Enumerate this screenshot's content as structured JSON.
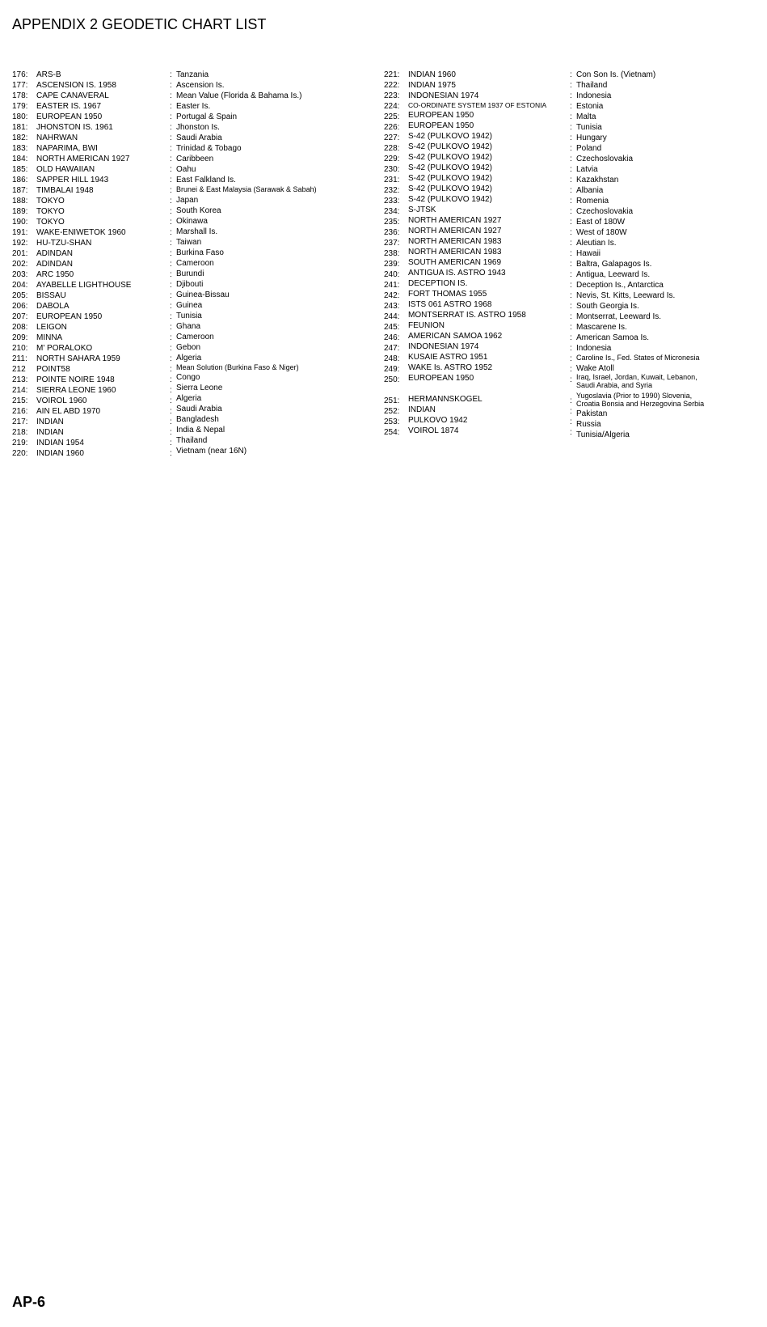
{
  "title": "APPENDIX 2 GEODETIC CHART LIST",
  "footer": "AP-6",
  "leftColumn": [
    {
      "code": "176:",
      "name": "ARS-B",
      "region": "Tanzania"
    },
    {
      "code": "177:",
      "name": "ASCENSION IS. 1958",
      "region": "Ascension Is."
    },
    {
      "code": "178:",
      "name": "CAPE CANAVERAL",
      "region": "Mean Value (Florida & Bahama Is.)"
    },
    {
      "code": "179:",
      "name": "EASTER IS. 1967",
      "region": "Easter Is."
    },
    {
      "code": "180:",
      "name": "EUROPEAN 1950",
      "region": "Portugal & Spain"
    },
    {
      "code": "181:",
      "name": "JHONSTON IS. 1961",
      "region": "Jhonston Is."
    },
    {
      "code": "182:",
      "name": "NAHRWAN",
      "region": "Saudi Arabia"
    },
    {
      "code": "183:",
      "name": "NAPARIMA, BWI",
      "region": "Trinidad & Tobago"
    },
    {
      "code": "184:",
      "name": "NORTH AMERICAN 1927",
      "region": "Caribbeen"
    },
    {
      "code": "185:",
      "name": "OLD HAWAIIAN",
      "region": "Oahu"
    },
    {
      "code": "186:",
      "name": "SAPPER HILL 1943",
      "region": "East Falkland Is."
    },
    {
      "code": "187:",
      "name": "TIMBALAI 1948",
      "region": "Brunei & East Malaysia (Sarawak & Sabah)",
      "regionClass": "small"
    },
    {
      "code": "188:",
      "name": "TOKYO",
      "region": "Japan"
    },
    {
      "code": "189:",
      "name": "TOKYO",
      "region": "South Korea"
    },
    {
      "code": "190:",
      "name": "TOKYO",
      "region": "Okinawa"
    },
    {
      "code": "191:",
      "name": "WAKE-ENIWETOK 1960",
      "region": "Marshall Is."
    },
    {
      "code": "192:",
      "name": "HU-TZU-SHAN",
      "region": "Taiwan"
    },
    {
      "code": "201:",
      "name": "ADINDAN",
      "region": "Burkina Faso"
    },
    {
      "code": "202:",
      "name": "ADINDAN",
      "region": "Cameroon"
    },
    {
      "code": "203:",
      "name": "ARC 1950",
      "region": "Burundi"
    },
    {
      "code": "204:",
      "name": "AYABELLE LIGHTHOUSE",
      "region": "Djibouti"
    },
    {
      "code": "205:",
      "name": "BISSAU",
      "region": "Guinea-Bissau"
    },
    {
      "code": "206:",
      "name": "DABOLA",
      "region": "Guinea"
    },
    {
      "code": "207:",
      "name": "EUROPEAN 1950",
      "region": "Tunisia"
    },
    {
      "code": "208:",
      "name": "LEIGON",
      "region": "Ghana"
    },
    {
      "code": "209:",
      "name": "MINNA",
      "region": "Cameroon"
    },
    {
      "code": "210:",
      "name": "M' PORALOKO",
      "region": "Gebon"
    },
    {
      "code": "211:",
      "name": "NORTH SAHARA 1959",
      "region": "Algeria"
    },
    {
      "code": "212",
      "name": "POINT58",
      "region": "Mean Solution (Burkina Faso & Niger)",
      "regionClass": "small"
    },
    {
      "code": "213:",
      "name": "POINTE NOIRE 1948",
      "region": "Congo"
    },
    {
      "code": "214:",
      "name": "SIERRA LEONE 1960",
      "region": "Sierra Leone"
    },
    {
      "code": "215:",
      "name": "VOIROL 1960",
      "region": "Algeria"
    },
    {
      "code": "216:",
      "name": "AIN EL ABD 1970",
      "region": "Saudi Arabia"
    },
    {
      "code": "217:",
      "name": "INDIAN",
      "region": "Bangladesh"
    },
    {
      "code": "218:",
      "name": "INDIAN",
      "region": "India & Nepal"
    },
    {
      "code": "219:",
      "name": "INDIAN 1954",
      "region": "Thailand"
    },
    {
      "code": "220:",
      "name": "INDIAN 1960",
      "region": "Vietnam (near 16N)"
    }
  ],
  "rightColumn": [
    {
      "code": "221:",
      "name": "INDIAN 1960",
      "region": "Con Son Is. (Vietnam)"
    },
    {
      "code": "222:",
      "name": "INDIAN 1975",
      "region": "Thailand"
    },
    {
      "code": "223:",
      "name": "INDONESIAN 1974",
      "region": "Indonesia"
    },
    {
      "code": "224:",
      "name": "CO-ORDINATE SYSTEM 1937 OF ESTONIA",
      "nameClass": "smaller",
      "region": "Estonia"
    },
    {
      "code": "225:",
      "name": "EUROPEAN 1950",
      "region": "Malta"
    },
    {
      "code": "226:",
      "name": "EUROPEAN 1950",
      "region": "Tunisia"
    },
    {
      "code": "227:",
      "name": "S-42 (PULKOVO 1942)",
      "region": "Hungary"
    },
    {
      "code": "228:",
      "name": "S-42 (PULKOVO 1942)",
      "region": "Poland"
    },
    {
      "code": "229:",
      "name": "S-42 (PULKOVO 1942)",
      "region": "Czechoslovakia"
    },
    {
      "code": "230:",
      "name": "S-42 (PULKOVO 1942)",
      "region": "Latvia"
    },
    {
      "code": "231:",
      "name": "S-42 (PULKOVO 1942)",
      "region": "Kazakhstan"
    },
    {
      "code": "232:",
      "name": "S-42 (PULKOVO 1942)",
      "region": "Albania"
    },
    {
      "code": "233:",
      "name": "S-42 (PULKOVO 1942)",
      "region": "Romenia"
    },
    {
      "code": "234:",
      "name": "S-JTSK",
      "region": "Czechoslovakia"
    },
    {
      "code": "235:",
      "name": "NORTH AMERICAN 1927",
      "region": "East of 180W"
    },
    {
      "code": "236:",
      "name": "NORTH AMERICAN 1927",
      "region": "West of 180W"
    },
    {
      "code": "237:",
      "name": "NORTH AMERICAN 1983",
      "region": "Aleutian Is."
    },
    {
      "code": "238:",
      "name": "NORTH AMERICAN 1983",
      "region": "Hawaii"
    },
    {
      "code": "239:",
      "name": "SOUTH AMERICAN 1969",
      "region": "Baltra, Galapagos Is."
    },
    {
      "code": "240:",
      "name": "ANTIGUA IS. ASTRO 1943",
      "region": "Antigua, Leeward Is."
    },
    {
      "code": "241:",
      "name": "DECEPTION IS.",
      "region": "Deception Is., Antarctica"
    },
    {
      "code": "242:",
      "name": "FORT THOMAS 1955",
      "region": "Nevis, St. Kitts, Leeward Is."
    },
    {
      "code": "243:",
      "name": "ISTS 061 ASTRO 1968",
      "region": "South Georgia Is."
    },
    {
      "code": "244:",
      "name": "MONTSERRAT IS. ASTRO 1958",
      "region": "Montserrat, Leeward Is."
    },
    {
      "code": "245:",
      "name": "FEUNION",
      "region": "Mascarene Is."
    },
    {
      "code": "246:",
      "name": "AMERICAN SAMOA 1962",
      "region": "American Samoa Is."
    },
    {
      "code": "247:",
      "name": "INDONESIAN 1974",
      "region": "Indonesia"
    },
    {
      "code": "248:",
      "name": "KUSAIE ASTRO 1951",
      "region": "Caroline Is., Fed. States of Micronesia",
      "regionClass": "small"
    },
    {
      "code": "249:",
      "name": "WAKE Is. ASTRO 1952",
      "region": "Wake Atoll"
    },
    {
      "code": "250:",
      "name": "EUROPEAN 1950",
      "region": "Iraq, Israel, Jordan, Kuwait, Lebanon,\nSaudi Arabia, and Syria",
      "regionClass": "small multiline"
    },
    {
      "code": "251:",
      "name": "HERMANNSKOGEL",
      "region": "Yugoslavia (Prior to 1990) Slovenia,\nCroatia Bonsia and Herzegovina Serbia",
      "regionClass": "small multiline",
      "gap": true
    },
    {
      "code": "252:",
      "name": "INDIAN",
      "region": "Pakistan"
    },
    {
      "code": "253:",
      "name": "PULKOVO 1942",
      "region": "Russia"
    },
    {
      "code": "254:",
      "name": "VOIROL 1874",
      "region": "Tunisia/Algeria"
    }
  ]
}
